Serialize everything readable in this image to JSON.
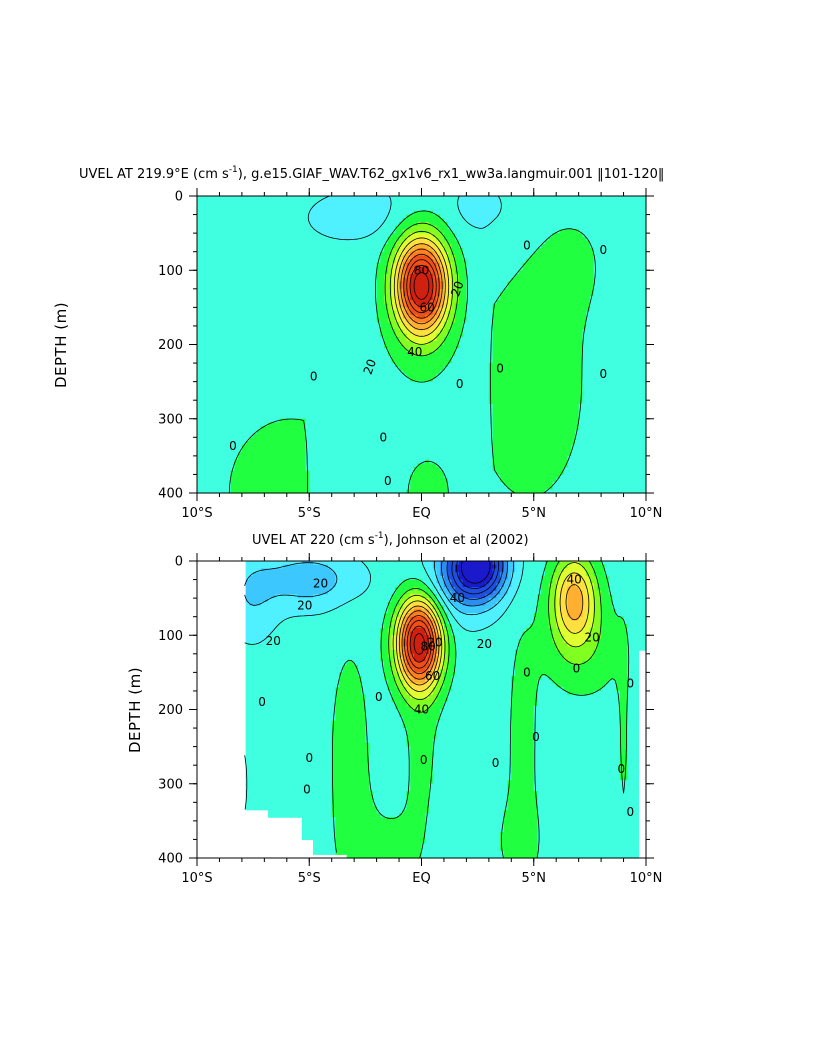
{
  "colors": {
    "background": "#ffffff",
    "scale": [
      "#1a1acc",
      "#1f4fe0",
      "#2c8ff0",
      "#3cc8ff",
      "#4ff0ff",
      "#40ffe0",
      "#20ff40",
      "#80ff20",
      "#e0ff30",
      "#ffe040",
      "#ffb030",
      "#ff8020",
      "#f05018",
      "#d02010"
    ]
  },
  "chart_data": [
    {
      "type": "heatmap",
      "title": "UVEL AT 219.9°E (cm s",
      "title_sup": "-1",
      "title_tail": "), g.e15.GIAF_WAV.T62_gx1v6_rx1_ww3a.langmuir.001 ‖101-120‖",
      "xlabel": "",
      "ylabel": "DEPTH (m)",
      "x_ticks": [
        "10°S",
        "5°S",
        "EQ",
        "5°N",
        "10°N"
      ],
      "y_ticks": [
        "0",
        "100",
        "200",
        "300",
        "400"
      ],
      "xlim": [
        -10,
        10
      ],
      "ylim": [
        0,
        400
      ],
      "y_reversed": true,
      "contour_interval": 10,
      "features": [
        {
          "name": "equatorial-undercurrent",
          "lat": 0.0,
          "depth": 120,
          "max": 100
        },
        {
          "name": "surface-westward-flow",
          "lat": -3.0,
          "depth": 30,
          "max": -15
        },
        {
          "name": "north-surface-westward",
          "lat": 2.5,
          "depth": 20,
          "max": -12
        },
        {
          "name": "nECC-eastward",
          "lat": 6.5,
          "depth": 200,
          "max": 5
        },
        {
          "name": "southern-deep-eastward",
          "lat": -6.5,
          "depth": 360,
          "max": 5
        }
      ],
      "contour_labels": [
        "80",
        "60",
        "40",
        "20",
        "20",
        "0",
        "0",
        "0",
        "0",
        "0",
        "0",
        "0",
        "0",
        "0"
      ]
    },
    {
      "type": "heatmap",
      "title": "UVEL AT 220 (cm s",
      "title_sup": "-1",
      "title_tail": "), Johnson et al (2002)",
      "xlabel": "",
      "ylabel": "DEPTH (m)",
      "x_ticks": [
        "10°S",
        "5°S",
        "EQ",
        "5°N",
        "10°N"
      ],
      "y_ticks": [
        "0",
        "100",
        "200",
        "300",
        "400"
      ],
      "xlim": [
        -10,
        10
      ],
      "ylim": [
        0,
        400
      ],
      "y_reversed": true,
      "contour_interval": 10,
      "features": [
        {
          "name": "equatorial-undercurrent",
          "lat": -0.1,
          "depth": 110,
          "max": 100
        },
        {
          "name": "south-equatorial-current",
          "lat": 2.5,
          "depth": 10,
          "max": -70
        },
        {
          "name": "south-surface-westward",
          "lat": -5.0,
          "depth": 30,
          "max": -22
        },
        {
          "name": "north-equatorial-countercurrent",
          "lat": 6.8,
          "depth": 50,
          "max": 48
        },
        {
          "name": "tsuchiya-jet-south",
          "lat": -3.2,
          "depth": 250,
          "max": 8
        },
        {
          "name": "tsuchiya-jet-north",
          "lat": 4.5,
          "depth": 240,
          "max": 8
        }
      ],
      "contour_labels": [
        "20",
        "20",
        "20",
        "40",
        "20",
        "40",
        "20",
        "20",
        "40",
        "60",
        "80",
        "0",
        "0",
        "0",
        "0",
        "0",
        "0",
        "0",
        "0",
        "0",
        "0",
        "0",
        "0"
      ]
    }
  ]
}
